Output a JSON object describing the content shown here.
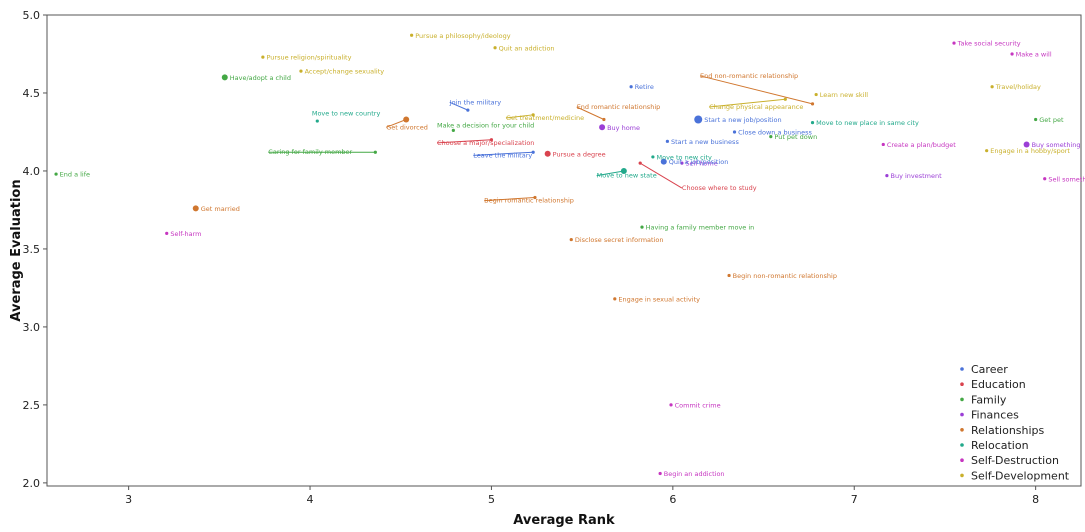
{
  "chart_data": {
    "type": "scatter",
    "title": "",
    "xlabel": "Average Rank",
    "ylabel": "Average Evaluation",
    "xlim": [
      2.55,
      8.25
    ],
    "ylim": [
      1.98,
      5.0
    ],
    "xticks": [
      3,
      4,
      5,
      6,
      7,
      8
    ],
    "yticks": [
      2.0,
      2.5,
      3.0,
      3.5,
      4.0,
      4.5,
      5.0
    ],
    "ytick_labels": [
      "2.0",
      "2.5",
      "3.0",
      "3.5",
      "4.0",
      "4.5",
      "5.0"
    ],
    "grid": false,
    "legend_position": "bottom-right",
    "categories": [
      {
        "name": "Career",
        "color": "#4a72d9"
      },
      {
        "name": "Education",
        "color": "#d9434e"
      },
      {
        "name": "Family",
        "color": "#44a845"
      },
      {
        "name": "Finances",
        "color": "#9b3fd6"
      },
      {
        "name": "Relationships",
        "color": "#d0772f"
      },
      {
        "name": "Relocation",
        "color": "#22a98b"
      },
      {
        "name": "Self-Destruction",
        "color": "#c636c0"
      },
      {
        "name": "Self-Development",
        "color": "#c9b02c"
      }
    ],
    "points": [
      {
        "label": "End a life",
        "x": 2.6,
        "y": 3.98,
        "cat": "Family",
        "size": 1
      },
      {
        "label": "Have/adopt a child",
        "x": 3.53,
        "y": 4.6,
        "cat": "Family",
        "size": 2
      },
      {
        "label": "Caring for family member",
        "x": 4.36,
        "y": 4.12,
        "cat": "Family",
        "size": 1
      },
      {
        "label": "Make a decision for your child",
        "x": 4.79,
        "y": 4.26,
        "cat": "Family",
        "size": 1
      },
      {
        "label": "Having a family member move in",
        "x": 5.83,
        "y": 3.64,
        "cat": "Family",
        "size": 1
      },
      {
        "label": "Put pet down",
        "x": 6.54,
        "y": 4.22,
        "cat": "Family",
        "size": 1
      },
      {
        "label": "Get pet",
        "x": 8.0,
        "y": 4.33,
        "cat": "Family",
        "size": 1
      },
      {
        "label": "Self-harm",
        "x": 3.21,
        "y": 3.6,
        "cat": "Self-Destruction",
        "size": 1
      },
      {
        "label": "Commit crime",
        "x": 5.99,
        "y": 2.5,
        "cat": "Self-Destruction",
        "size": 1
      },
      {
        "label": "Begin an addiction",
        "x": 5.93,
        "y": 2.06,
        "cat": "Self-Destruction",
        "size": 1
      },
      {
        "label": "Take social security",
        "x": 7.55,
        "y": 4.82,
        "cat": "Self-Destruction",
        "size": 1
      },
      {
        "label": "Make a will",
        "x": 7.87,
        "y": 4.75,
        "cat": "Self-Destruction",
        "size": 1
      },
      {
        "label": "Sell something",
        "x": 8.05,
        "y": 3.95,
        "cat": "Self-Destruction",
        "size": 1
      },
      {
        "label": "Create a plan/budget",
        "x": 7.16,
        "y": 4.17,
        "cat": "Self-Destruction",
        "size": 1
      },
      {
        "label": "Buy investment",
        "x": 7.18,
        "y": 3.97,
        "cat": "Finances",
        "size": 1
      },
      {
        "label": "Buy something",
        "x": 7.95,
        "y": 4.17,
        "cat": "Finances",
        "size": 2
      },
      {
        "label": "Buy home",
        "x": 5.61,
        "y": 4.28,
        "cat": "Finances",
        "size": 2
      },
      {
        "label": "Sell home",
        "x": 6.05,
        "y": 4.05,
        "cat": "Finances",
        "size": 1
      },
      {
        "label": "Get married",
        "x": 3.37,
        "y": 3.76,
        "cat": "Relationships",
        "size": 2
      },
      {
        "label": "Get divorced",
        "x": 4.53,
        "y": 4.33,
        "cat": "Relationships",
        "size": 2
      },
      {
        "label": "End romantic relationship",
        "x": 5.62,
        "y": 4.33,
        "cat": "Relationships",
        "size": 1
      },
      {
        "label": "Begin romantic relationship",
        "x": 5.24,
        "y": 3.83,
        "cat": "Relationships",
        "size": 1
      },
      {
        "label": "Disclose secret information",
        "x": 5.44,
        "y": 3.56,
        "cat": "Relationships",
        "size": 1
      },
      {
        "label": "Engage in sexual activity",
        "x": 5.68,
        "y": 3.18,
        "cat": "Relationships",
        "size": 1
      },
      {
        "label": "Begin non-romantic relationship",
        "x": 6.31,
        "y": 3.33,
        "cat": "Relationships",
        "size": 1
      },
      {
        "label": "End non-romantic relationship",
        "x": 6.77,
        "y": 4.43,
        "cat": "Relationships",
        "size": 1
      },
      {
        "label": "Move to new country",
        "x": 4.04,
        "y": 4.32,
        "cat": "Relocation",
        "size": 1
      },
      {
        "label": "Move to new state",
        "x": 5.73,
        "y": 4.0,
        "cat": "Relocation",
        "size": 2
      },
      {
        "label": "Move to new city",
        "x": 5.89,
        "y": 4.09,
        "cat": "Relocation",
        "size": 1
      },
      {
        "label": "Move to new place in same city",
        "x": 6.77,
        "y": 4.31,
        "cat": "Relocation",
        "size": 1
      },
      {
        "label": "Pursue religion/spirituality",
        "x": 3.74,
        "y": 4.73,
        "cat": "Self-Development",
        "size": 1
      },
      {
        "label": "Accept/change sexuality",
        "x": 3.95,
        "y": 4.64,
        "cat": "Self-Development",
        "size": 1
      },
      {
        "label": "Pursue a philosophy/ideology",
        "x": 4.56,
        "y": 4.87,
        "cat": "Self-Development",
        "size": 1
      },
      {
        "label": "Quit an addiction",
        "x": 5.02,
        "y": 4.79,
        "cat": "Self-Development",
        "size": 1
      },
      {
        "label": "Get treatment/medicine",
        "x": 5.23,
        "y": 4.36,
        "cat": "Self-Development",
        "size": 1
      },
      {
        "label": "Change physical appearance",
        "x": 6.62,
        "y": 4.46,
        "cat": "Self-Development",
        "size": 1
      },
      {
        "label": "Learn new skill",
        "x": 6.79,
        "y": 4.49,
        "cat": "Self-Development",
        "size": 1
      },
      {
        "label": "Travel/holiday",
        "x": 7.76,
        "y": 4.54,
        "cat": "Self-Development",
        "size": 1
      },
      {
        "label": "Engage in a hobby/sport",
        "x": 7.73,
        "y": 4.13,
        "cat": "Self-Development",
        "size": 1
      },
      {
        "label": "Join the military",
        "x": 4.87,
        "y": 4.39,
        "cat": "Career",
        "size": 1
      },
      {
        "label": "Leave the military",
        "x": 5.23,
        "y": 4.12,
        "cat": "Career",
        "size": 1
      },
      {
        "label": "Retire",
        "x": 5.77,
        "y": 4.54,
        "cat": "Career",
        "size": 1
      },
      {
        "label": "Start a new job/position",
        "x": 6.14,
        "y": 4.33,
        "cat": "Career",
        "size": 3
      },
      {
        "label": "Start a new business",
        "x": 5.97,
        "y": 4.19,
        "cat": "Career",
        "size": 1
      },
      {
        "label": "Close down a business",
        "x": 6.34,
        "y": 4.25,
        "cat": "Career",
        "size": 1
      },
      {
        "label": "Quit a job/position",
        "x": 5.95,
        "y": 4.06,
        "cat": "Career",
        "size": 2
      },
      {
        "label": "Choose a major/specialization",
        "x": 5.0,
        "y": 4.2,
        "cat": "Education",
        "size": 1
      },
      {
        "label": "Pursue a degree",
        "x": 5.31,
        "y": 4.11,
        "cat": "Education",
        "size": 2
      },
      {
        "label": "Choose where to study",
        "x": 5.82,
        "y": 4.05,
        "cat": "Education",
        "size": 1
      }
    ],
    "annotations": [
      {
        "text": "Move to new country",
        "x": 4.01,
        "y": 4.37,
        "cat": "Relocation",
        "anchor": "start"
      },
      {
        "text": "Get divorced",
        "x": 4.42,
        "y": 4.28,
        "cat": "Relationships",
        "anchor": "start"
      },
      {
        "text": "Join the military",
        "x": 4.77,
        "y": 4.44,
        "cat": "Career",
        "anchor": "start"
      },
      {
        "text": "Make a decision for your child",
        "x": 4.7,
        "y": 4.29,
        "cat": "Family",
        "anchor": "start"
      },
      {
        "text": "Caring for family member",
        "x": 3.77,
        "y": 4.12,
        "cat": "Family",
        "anchor": "start"
      },
      {
        "text": "Choose a major/specialization",
        "x": 4.7,
        "y": 4.18,
        "cat": "Education",
        "anchor": "start"
      },
      {
        "text": "Leave the military",
        "x": 4.9,
        "y": 4.1,
        "cat": "Career",
        "anchor": "start"
      },
      {
        "text": "End romantic relationship",
        "x": 5.47,
        "y": 4.41,
        "cat": "Relationships",
        "anchor": "start"
      },
      {
        "text": "Get treatment/medicine",
        "x": 5.08,
        "y": 4.34,
        "cat": "Self-Development",
        "anchor": "start"
      },
      {
        "text": "Move to new state",
        "x": 5.58,
        "y": 3.97,
        "cat": "Relocation",
        "anchor": "start"
      },
      {
        "text": "Begin romantic relationship",
        "x": 4.96,
        "y": 3.81,
        "cat": "Relationships",
        "anchor": "start"
      },
      {
        "text": "Change physical appearance",
        "x": 6.2,
        "y": 4.41,
        "cat": "Self-Development",
        "anchor": "start"
      },
      {
        "text": "End non-romantic relationship",
        "x": 6.15,
        "y": 4.61,
        "cat": "Relationships",
        "anchor": "start"
      },
      {
        "text": "Choose where to study",
        "x": 6.05,
        "y": 3.89,
        "cat": "Education",
        "anchor": "start"
      }
    ]
  },
  "legend": {
    "items": [
      "Career",
      "Education",
      "Family",
      "Finances",
      "Relationships",
      "Relocation",
      "Self-Destruction",
      "Self-Development"
    ]
  }
}
